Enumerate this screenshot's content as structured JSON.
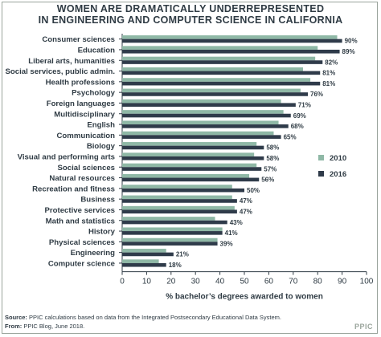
{
  "chart_data": {
    "type": "bar",
    "title_line1": "WOMEN  ARE DRAMATICALLY UNDERREPRESENTED",
    "title_line2": "IN ENGINEERING AND COMPUTER SCIENCE IN CALIFORNIA",
    "xlabel": "% bachelor’s degrees awarded to women",
    "xlim": [
      0,
      100
    ],
    "xticks": [
      0,
      10,
      20,
      30,
      40,
      50,
      60,
      70,
      80,
      90,
      100
    ],
    "categories": [
      "Consumer sciences",
      "Education",
      "Liberal arts, humanities",
      "Social services, public admin.",
      "Health professions",
      "Psychology",
      "Foreign languages",
      "Multidisciplinary",
      "English",
      "Communication",
      "Biology",
      "Visual and performing arts",
      "Social sciences",
      "Natural resources",
      "Recreation and fitness",
      "Business",
      "Protective services",
      "Math and statistics",
      "History",
      "Physical sciences",
      "Engineering",
      "Computer science"
    ],
    "series": [
      {
        "name": "2010",
        "color": "#8fb8a6",
        "values": [
          88,
          80,
          79,
          74,
          77,
          73,
          65,
          66,
          64,
          62,
          55,
          54,
          55,
          52,
          45,
          45,
          46,
          38,
          41,
          39,
          18,
          15
        ]
      },
      {
        "name": "2016",
        "color": "#2f3b4a",
        "values": [
          90,
          89,
          82,
          81,
          81,
          76,
          71,
          69,
          68,
          65,
          58,
          58,
          57,
          56,
          50,
          47,
          47,
          43,
          41,
          39,
          21,
          18
        ]
      }
    ],
    "value_labels": [
      "90%",
      "89%",
      "82%",
      "81%",
      "81%",
      "76%",
      "71%",
      "69%",
      "68%",
      "65%",
      "58%",
      "58%",
      "57%",
      "56%",
      "50%",
      "47%",
      "47%",
      "43%",
      "41%",
      "39%",
      "21%",
      "18%"
    ],
    "legend_position": "right"
  },
  "footer": {
    "source_label": "Source:",
    "source_text": "PPIC calculations based on data from the Integrated Postsecondary Educational Data System.",
    "from_label": "From:",
    "from_text": "PPIC Blog, June 2018."
  },
  "logo_text": "PPIC"
}
